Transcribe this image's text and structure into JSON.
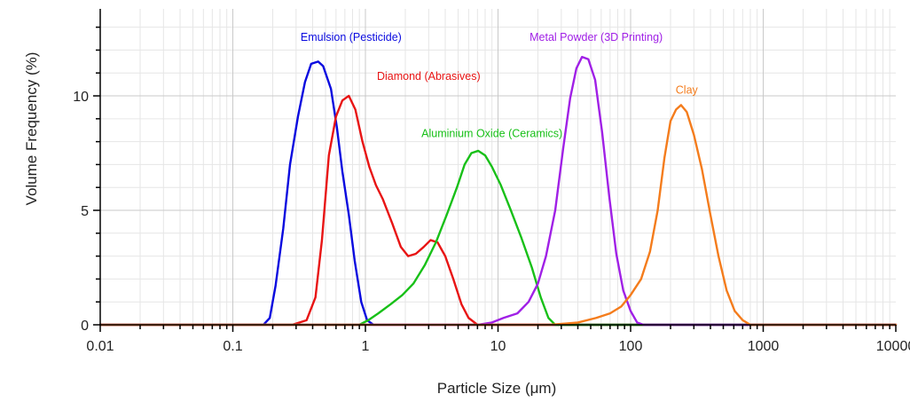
{
  "chart_data": {
    "type": "line",
    "xscale": "log",
    "xlabel": "Particle Size (μm)",
    "ylabel": "Volume Frequency (%)",
    "xlim": [
      0.01,
      10000
    ],
    "ylim": [
      0,
      13.8
    ],
    "grid": true,
    "xticks": [
      {
        "value": 0.01,
        "label": "0.01"
      },
      {
        "value": 0.1,
        "label": "0.1"
      },
      {
        "value": 1,
        "label": "1"
      },
      {
        "value": 10,
        "label": "10"
      },
      {
        "value": 100,
        "label": "100"
      },
      {
        "value": 1000,
        "label": "1000"
      },
      {
        "value": 10000,
        "label": "10000"
      }
    ],
    "yticks": [
      {
        "value": 0,
        "label": "0"
      },
      {
        "value": 5,
        "label": "5"
      },
      {
        "value": 10,
        "label": "10"
      }
    ],
    "series": [
      {
        "name": "Emulsion (Pesticide)",
        "color": "#0a0adf",
        "label_anchor": [
          0.78,
          12.4
        ],
        "points": [
          [
            0.01,
            0
          ],
          [
            0.17,
            0
          ],
          [
            0.19,
            0.3
          ],
          [
            0.21,
            1.7
          ],
          [
            0.24,
            4.2
          ],
          [
            0.27,
            7.0
          ],
          [
            0.31,
            9.1
          ],
          [
            0.35,
            10.6
          ],
          [
            0.39,
            11.4
          ],
          [
            0.44,
            11.5
          ],
          [
            0.48,
            11.3
          ],
          [
            0.55,
            10.3
          ],
          [
            0.61,
            8.6
          ],
          [
            0.67,
            6.7
          ],
          [
            0.75,
            4.8
          ],
          [
            0.83,
            2.8
          ],
          [
            0.93,
            1.0
          ],
          [
            1.03,
            0.2
          ],
          [
            1.15,
            0
          ],
          [
            10000,
            0
          ]
        ]
      },
      {
        "name": "Diamond (Abrasives)",
        "color": "#e81414",
        "label_anchor": [
          3.0,
          10.7
        ],
        "points": [
          [
            0.01,
            0
          ],
          [
            0.28,
            0
          ],
          [
            0.36,
            0.2
          ],
          [
            0.42,
            1.2
          ],
          [
            0.47,
            3.7
          ],
          [
            0.53,
            7.4
          ],
          [
            0.6,
            9.1
          ],
          [
            0.67,
            9.8
          ],
          [
            0.75,
            10.0
          ],
          [
            0.84,
            9.4
          ],
          [
            0.95,
            8.0
          ],
          [
            1.07,
            6.9
          ],
          [
            1.2,
            6.1
          ],
          [
            1.35,
            5.5
          ],
          [
            1.6,
            4.4
          ],
          [
            1.85,
            3.4
          ],
          [
            2.1,
            3.0
          ],
          [
            2.4,
            3.1
          ],
          [
            2.75,
            3.4
          ],
          [
            3.1,
            3.7
          ],
          [
            3.5,
            3.6
          ],
          [
            4.0,
            3.0
          ],
          [
            4.6,
            2.0
          ],
          [
            5.3,
            0.9
          ],
          [
            6.0,
            0.3
          ],
          [
            7.0,
            0
          ],
          [
            10000,
            0
          ]
        ]
      },
      {
        "name": "Aluminium Oxide (Ceramics)",
        "color": "#18c018",
        "label_anchor": [
          9.0,
          8.2
        ],
        "points": [
          [
            0.01,
            0
          ],
          [
            0.9,
            0
          ],
          [
            1.05,
            0.2
          ],
          [
            1.25,
            0.5
          ],
          [
            1.55,
            0.9
          ],
          [
            1.9,
            1.3
          ],
          [
            2.3,
            1.8
          ],
          [
            2.8,
            2.6
          ],
          [
            3.4,
            3.6
          ],
          [
            4.1,
            4.8
          ],
          [
            4.9,
            6.0
          ],
          [
            5.6,
            7.0
          ],
          [
            6.3,
            7.5
          ],
          [
            7.1,
            7.6
          ],
          [
            8.0,
            7.4
          ],
          [
            9.0,
            6.9
          ],
          [
            10.5,
            6.1
          ],
          [
            12.5,
            5.0
          ],
          [
            15.0,
            3.8
          ],
          [
            18.0,
            2.5
          ],
          [
            21.0,
            1.2
          ],
          [
            24.0,
            0.3
          ],
          [
            27.0,
            0
          ],
          [
            10000,
            0
          ]
        ]
      },
      {
        "name": "Metal Powder (3D Printing)",
        "color": "#a020e6",
        "label_anchor": [
          55.0,
          12.4
        ],
        "points": [
          [
            0.01,
            0
          ],
          [
            7.0,
            0
          ],
          [
            9.0,
            0.1
          ],
          [
            11.0,
            0.3
          ],
          [
            14.0,
            0.5
          ],
          [
            17.0,
            1.0
          ],
          [
            20.0,
            1.8
          ],
          [
            23.0,
            3.0
          ],
          [
            27.0,
            5.0
          ],
          [
            31.0,
            7.7
          ],
          [
            35.0,
            9.9
          ],
          [
            39.0,
            11.2
          ],
          [
            43.0,
            11.7
          ],
          [
            48.0,
            11.6
          ],
          [
            54.0,
            10.7
          ],
          [
            61.0,
            8.4
          ],
          [
            69.0,
            5.6
          ],
          [
            78.0,
            3.1
          ],
          [
            88.0,
            1.5
          ],
          [
            100.0,
            0.6
          ],
          [
            112.0,
            0.1
          ],
          [
            125.0,
            0
          ],
          [
            10000,
            0
          ]
        ]
      },
      {
        "name": "Clay",
        "color": "#f47c1c",
        "label_anchor": [
          265.0,
          10.1
        ],
        "points": [
          [
            0.01,
            0
          ],
          [
            25.0,
            0
          ],
          [
            40.0,
            0.1
          ],
          [
            55.0,
            0.3
          ],
          [
            70.0,
            0.5
          ],
          [
            85.0,
            0.8
          ],
          [
            100.0,
            1.3
          ],
          [
            120.0,
            2.0
          ],
          [
            140.0,
            3.2
          ],
          [
            160.0,
            5.0
          ],
          [
            180.0,
            7.3
          ],
          [
            200.0,
            8.9
          ],
          [
            220.0,
            9.4
          ],
          [
            240.0,
            9.6
          ],
          [
            265.0,
            9.3
          ],
          [
            300.0,
            8.3
          ],
          [
            345.0,
            6.8
          ],
          [
            400.0,
            4.8
          ],
          [
            460.0,
            3.0
          ],
          [
            530.0,
            1.5
          ],
          [
            610.0,
            0.6
          ],
          [
            700.0,
            0.2
          ],
          [
            800.0,
            0
          ],
          [
            10000,
            0
          ]
        ]
      }
    ]
  }
}
